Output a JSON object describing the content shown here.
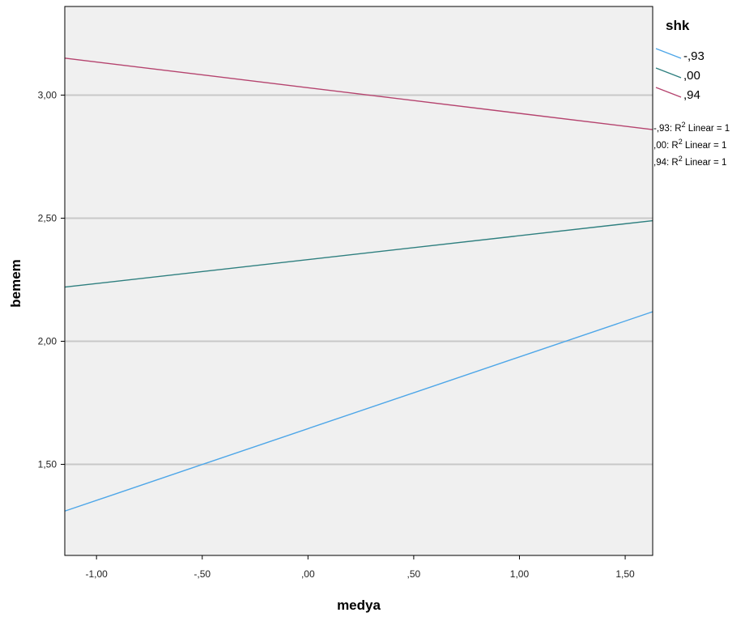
{
  "chart_data": {
    "type": "line",
    "xlabel": "medya",
    "ylabel": "bemem",
    "xlim": [
      -1.15,
      1.63
    ],
    "ylim": [
      1.13,
      3.36
    ],
    "x_ticks": [
      -1.0,
      -0.5,
      0.0,
      0.5,
      1.0,
      1.5
    ],
    "x_tick_labels": [
      "-1,00",
      "-,50",
      ",00",
      ",50",
      "1,00",
      "1,50"
    ],
    "y_ticks": [
      1.5,
      2.0,
      2.5,
      3.0
    ],
    "y_tick_labels": [
      "1,50",
      "2,00",
      "2,50",
      "3,00"
    ],
    "grid": "horizontal",
    "legend": {
      "title": "shk",
      "placement": "right",
      "fit_notes": [
        {
          "label": "-,93",
          "rest": ": R",
          "sup": "2",
          "tail": " Linear = 1"
        },
        {
          "label": ",00",
          "rest": ": R",
          "sup": "2",
          "tail": " Linear = 1"
        },
        {
          "label": ",94",
          "rest": ": R",
          "sup": "2",
          "tail": " Linear = 1"
        }
      ]
    },
    "series": [
      {
        "name": "-,93",
        "color": "#4da6e8",
        "x": [
          -1.15,
          1.63
        ],
        "y": [
          1.31,
          2.12
        ]
      },
      {
        "name": ",00",
        "color": "#2e7f7f",
        "x": [
          -1.15,
          1.63
        ],
        "y": [
          2.22,
          2.49
        ]
      },
      {
        "name": ",94",
        "color": "#b5436e",
        "x": [
          -1.15,
          1.63
        ],
        "y": [
          3.15,
          2.86
        ]
      }
    ]
  }
}
